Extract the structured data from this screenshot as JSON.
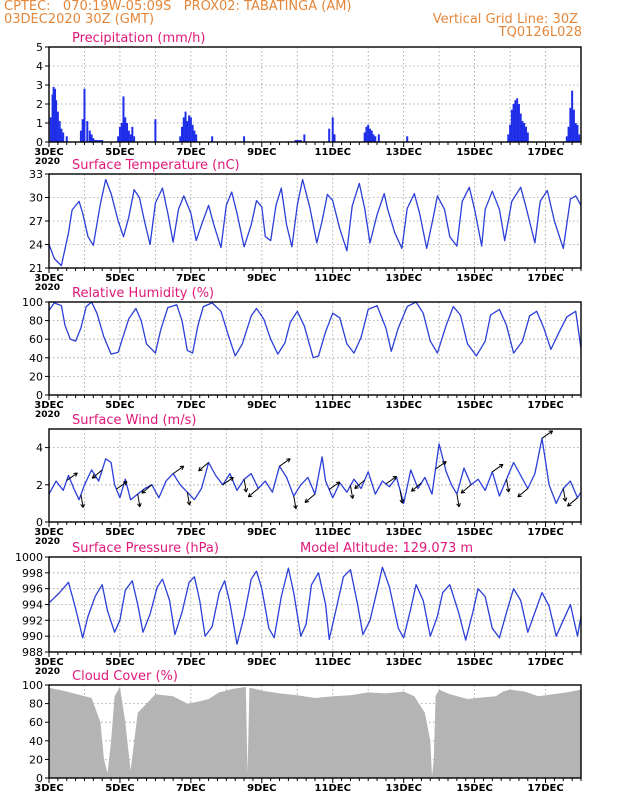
{
  "header": {
    "line1": "CPTEC:   070:19W-05:09S   PROX02: TABATINGA (AM)",
    "date": "03DEC2020 30Z (GMT)",
    "grid_line": "Vertical Grid Line: 30Z",
    "code": "TQ0126L028"
  },
  "colors": {
    "header": "#e5873a",
    "title": "#e0187a",
    "line": "#2b3fd9",
    "bar": "#1f2ee8",
    "cloud": "#b4b4b4",
    "axis": "#000000"
  },
  "x_axis": {
    "tick_labels": [
      "3DEC",
      "5DEC",
      "7DEC",
      "9DEC",
      "11DEC",
      "13DEC",
      "15DEC",
      "17DEC"
    ],
    "tick_days": [
      3,
      5,
      7,
      9,
      11,
      13,
      15,
      17
    ],
    "range_days": [
      3,
      18
    ],
    "year_label": "2020"
  },
  "chart_data": [
    {
      "type": "bar",
      "title": "Precipitation (mm/h)",
      "ylim": [
        0,
        5
      ],
      "yticks": [
        0,
        1,
        2,
        3,
        4,
        5
      ],
      "grid": true,
      "series": [
        {
          "x": [
            3.05,
            3.1,
            3.13,
            3.17,
            3.2,
            3.25,
            3.3,
            3.35,
            3.4,
            3.5,
            3.9,
            3.95,
            4.0,
            4.08,
            4.15,
            4.2,
            4.25,
            4.3,
            4.35,
            4.4,
            4.45,
            4.5,
            4.95,
            5.0,
            5.05,
            5.1,
            5.15,
            5.2,
            5.25,
            5.3,
            5.35,
            5.4,
            6.0,
            6.7,
            6.75,
            6.8,
            6.85,
            6.9,
            6.95,
            7.0,
            7.05,
            7.1,
            7.15,
            7.6,
            8.5,
            9.95,
            10.0,
            10.05,
            10.1,
            10.2,
            10.9,
            11.0,
            11.05,
            11.9,
            11.95,
            12.0,
            12.05,
            12.1,
            12.15,
            12.2,
            12.3,
            13.1,
            15.95,
            16.0,
            16.05,
            16.1,
            16.15,
            16.2,
            16.25,
            16.3,
            16.35,
            16.4,
            16.45,
            16.5,
            17.6,
            17.65,
            17.7,
            17.75,
            17.8,
            17.85,
            17.9,
            17.95
          ],
          "values": [
            1.3,
            2.5,
            2.9,
            2.8,
            2.2,
            1.6,
            1.1,
            0.7,
            0.5,
            0.3,
            0.6,
            1.2,
            2.8,
            1.1,
            0.6,
            0.4,
            0.2,
            0.1,
            0.1,
            0.1,
            0.1,
            0.1,
            0.3,
            0.8,
            1.0,
            2.4,
            1.3,
            1.0,
            0.6,
            0.4,
            0.8,
            0.3,
            1.2,
            0.3,
            0.8,
            1.3,
            1.6,
            1.1,
            1.4,
            1.3,
            0.9,
            0.6,
            0.4,
            0.3,
            0.3,
            0.1,
            0.1,
            0.1,
            0.1,
            0.4,
            0.7,
            1.3,
            0.4,
            0.5,
            0.8,
            0.9,
            0.7,
            0.6,
            0.4,
            0.3,
            0.4,
            0.3,
            0.4,
            0.9,
            1.7,
            2.0,
            2.2,
            2.3,
            2.0,
            1.5,
            1.1,
            1.0,
            0.8,
            0.5,
            0.3,
            0.8,
            1.8,
            2.7,
            1.7,
            1.0,
            0.9,
            0.4
          ]
        }
      ]
    },
    {
      "type": "line",
      "title": "Surface Temperature (nC)",
      "ylim": [
        21,
        33
      ],
      "yticks": [
        21,
        24,
        27,
        30,
        33
      ],
      "grid": true,
      "series": [
        {
          "x": [
            3.0,
            3.15,
            3.35,
            3.55,
            3.65,
            3.85,
            3.95,
            4.1,
            4.25,
            4.45,
            4.6,
            4.75,
            4.95,
            5.1,
            5.25,
            5.4,
            5.55,
            5.7,
            5.85,
            6.0,
            6.2,
            6.35,
            6.5,
            6.65,
            6.8,
            7.0,
            7.15,
            7.3,
            7.5,
            7.65,
            7.85,
            8.0,
            8.15,
            8.3,
            8.5,
            8.7,
            8.85,
            9.0,
            9.1,
            9.25,
            9.4,
            9.55,
            9.7,
            9.85,
            10.0,
            10.15,
            10.35,
            10.55,
            10.7,
            10.85,
            11.0,
            11.2,
            11.4,
            11.55,
            11.75,
            11.9,
            12.05,
            12.25,
            12.45,
            12.55,
            12.75,
            12.95,
            13.1,
            13.3,
            13.45,
            13.65,
            13.85,
            13.95,
            14.15,
            14.3,
            14.5,
            14.65,
            14.85,
            15.0,
            15.2,
            15.3,
            15.5,
            15.7,
            15.85,
            16.05,
            16.3,
            16.45,
            16.7,
            16.85,
            17.05,
            17.25,
            17.5,
            17.7,
            17.85,
            18.0
          ],
          "values": [
            24.0,
            22.2,
            21.3,
            25.5,
            28.4,
            29.5,
            28.0,
            25.0,
            23.9,
            29.2,
            32.3,
            30.5,
            27.0,
            25.0,
            27.5,
            31.0,
            30.0,
            26.8,
            24.0,
            29.3,
            31.2,
            28.0,
            24.3,
            28.5,
            30.2,
            28.0,
            24.5,
            26.5,
            29.0,
            26.5,
            23.6,
            29.0,
            30.7,
            28.0,
            23.7,
            26.5,
            29.6,
            28.8,
            25.0,
            24.5,
            29.0,
            31.2,
            26.5,
            23.7,
            29.0,
            32.3,
            28.8,
            24.2,
            27.0,
            30.4,
            29.6,
            26.0,
            23.2,
            28.9,
            31.8,
            28.6,
            24.2,
            27.8,
            30.5,
            28.5,
            25.5,
            23.5,
            28.6,
            30.5,
            28.0,
            23.5,
            27.8,
            30.2,
            28.5,
            25.0,
            23.8,
            29.5,
            31.3,
            28.5,
            23.8,
            28.5,
            30.8,
            28.5,
            24.5,
            29.5,
            31.3,
            28.8,
            24.2,
            29.5,
            30.9,
            27.0,
            23.5,
            29.8,
            30.2,
            29.0
          ]
        }
      ]
    },
    {
      "type": "line",
      "title": "Relative Humidity (%)",
      "ylim": [
        0,
        100
      ],
      "yticks": [
        0,
        20,
        40,
        60,
        80,
        100
      ],
      "grid": true,
      "series": [
        {
          "x": [
            3.0,
            3.15,
            3.35,
            3.45,
            3.6,
            3.75,
            3.9,
            4.05,
            4.2,
            4.35,
            4.55,
            4.75,
            4.95,
            5.05,
            5.25,
            5.45,
            5.6,
            5.75,
            6.0,
            6.15,
            6.35,
            6.6,
            6.75,
            6.9,
            7.05,
            7.2,
            7.35,
            7.6,
            7.85,
            8.05,
            8.25,
            8.45,
            8.7,
            8.85,
            9.05,
            9.25,
            9.45,
            9.65,
            9.8,
            10.0,
            10.2,
            10.45,
            10.6,
            10.8,
            11.0,
            11.2,
            11.4,
            11.6,
            11.8,
            12.0,
            12.25,
            12.5,
            12.65,
            12.85,
            13.1,
            13.35,
            13.55,
            13.75,
            13.95,
            14.2,
            14.4,
            14.6,
            14.8,
            15.05,
            15.3,
            15.45,
            15.7,
            15.9,
            16.1,
            16.35,
            16.55,
            16.75,
            16.95,
            17.15,
            17.35,
            17.6,
            17.85,
            18.0
          ],
          "values": [
            91.0,
            99.0,
            96.0,
            75.0,
            60.0,
            58.0,
            72.0,
            95.0,
            100.0,
            88.0,
            62.0,
            44.0,
            46.0,
            58.0,
            82.0,
            93.0,
            80.0,
            55.0,
            45.0,
            70.0,
            94.0,
            97.0,
            80.0,
            48.0,
            45.0,
            75.0,
            95.0,
            99.0,
            90.0,
            65.0,
            42.0,
            55.0,
            85.0,
            93.0,
            82.0,
            60.0,
            44.0,
            56.0,
            78.0,
            90.0,
            74.0,
            40.0,
            42.0,
            68.0,
            88.0,
            83.0,
            55.0,
            45.0,
            62.0,
            92.0,
            96.0,
            72.0,
            47.0,
            72.0,
            95.0,
            100.0,
            88.0,
            58.0,
            45.0,
            75.0,
            95.0,
            86.0,
            55.0,
            42.0,
            58.0,
            86.0,
            92.0,
            75.0,
            45.0,
            58.0,
            85.0,
            90.0,
            72.0,
            49.0,
            65.0,
            84.0,
            90.0,
            50.0
          ]
        }
      ]
    },
    {
      "type": "line",
      "title": "Surface Wind (m/s)",
      "ylim": [
        0,
        5
      ],
      "yticks": [
        0,
        2,
        4
      ],
      "grid": true,
      "series": [
        {
          "x": [
            3.0,
            3.2,
            3.4,
            3.55,
            3.7,
            3.85,
            4.0,
            4.2,
            4.4,
            4.6,
            4.75,
            4.85,
            5.0,
            5.15,
            5.3,
            5.5,
            5.7,
            5.9,
            6.1,
            6.3,
            6.5,
            6.7,
            6.9,
            7.1,
            7.3,
            7.5,
            7.7,
            7.9,
            8.1,
            8.3,
            8.5,
            8.7,
            8.9,
            9.1,
            9.3,
            9.5,
            9.7,
            9.9,
            10.1,
            10.3,
            10.5,
            10.7,
            10.8,
            11.0,
            11.2,
            11.4,
            11.6,
            11.8,
            12.0,
            12.2,
            12.4,
            12.6,
            12.8,
            13.0,
            13.2,
            13.4,
            13.6,
            13.8,
            14.0,
            14.2,
            14.35,
            14.5,
            14.7,
            14.9,
            15.1,
            15.3,
            15.5,
            15.7,
            15.9,
            16.1,
            16.3,
            16.5,
            16.7,
            16.9,
            17.1,
            17.3,
            17.5,
            17.7,
            17.9,
            18.0
          ],
          "values": [
            1.5,
            2.2,
            1.7,
            2.5,
            1.8,
            1.2,
            2.0,
            2.8,
            2.2,
            3.4,
            3.2,
            2.0,
            1.3,
            2.3,
            1.2,
            1.5,
            1.8,
            2.0,
            1.3,
            2.2,
            2.6,
            2.0,
            1.6,
            1.2,
            1.8,
            3.2,
            2.5,
            2.0,
            2.6,
            1.7,
            2.3,
            2.6,
            1.8,
            2.2,
            1.6,
            3.0,
            2.4,
            1.4,
            2.0,
            2.4,
            1.5,
            3.5,
            2.2,
            1.3,
            2.1,
            1.6,
            2.3,
            1.8,
            2.7,
            1.5,
            2.2,
            1.9,
            2.4,
            1.0,
            2.8,
            1.8,
            2.4,
            1.5,
            4.2,
            2.7,
            2.0,
            1.5,
            2.9,
            2.0,
            2.3,
            1.7,
            2.7,
            1.4,
            2.3,
            3.2,
            2.5,
            1.8,
            2.6,
            4.5,
            2.0,
            1.0,
            1.8,
            2.2,
            1.3,
            1.6
          ]
        }
      ],
      "wind_barbs_at_days": [
        3.5,
        3.9,
        4.5,
        4.9,
        5.5,
        5.9,
        6.5,
        6.9,
        7.5,
        7.9,
        8.5,
        8.9,
        9.5,
        9.9,
        10.5,
        10.9,
        11.5,
        11.9,
        12.5,
        12.9,
        13.5,
        13.9,
        14.5,
        14.9,
        15.5,
        15.9,
        16.5,
        16.9,
        17.5,
        17.9
      ]
    },
    {
      "type": "line",
      "title": "Surface Pressure (hPa)",
      "annotation": "Model Altitude: 129.073  m",
      "ylim": [
        988,
        1000
      ],
      "yticks": [
        988,
        990,
        992,
        994,
        996,
        998,
        1000
      ],
      "grid": true,
      "series": [
        {
          "x": [
            3.0,
            3.3,
            3.55,
            3.75,
            3.95,
            4.1,
            4.3,
            4.5,
            4.65,
            4.85,
            5.0,
            5.15,
            5.35,
            5.5,
            5.65,
            5.85,
            6.05,
            6.2,
            6.4,
            6.55,
            6.75,
            6.95,
            7.1,
            7.25,
            7.4,
            7.6,
            7.8,
            7.95,
            8.1,
            8.3,
            8.5,
            8.7,
            8.85,
            9.0,
            9.2,
            9.35,
            9.55,
            9.75,
            9.9,
            10.1,
            10.25,
            10.4,
            10.6,
            10.8,
            10.9,
            11.1,
            11.3,
            11.5,
            11.7,
            11.85,
            12.05,
            12.25,
            12.4,
            12.6,
            12.85,
            13.0,
            13.2,
            13.35,
            13.55,
            13.75,
            13.95,
            14.1,
            14.3,
            14.55,
            14.75,
            14.95,
            15.1,
            15.3,
            15.5,
            15.7,
            15.9,
            16.1,
            16.3,
            16.5,
            16.7,
            16.9,
            17.1,
            17.3,
            17.5,
            17.7,
            17.9,
            18.0
          ],
          "values": [
            994.2,
            995.5,
            996.8,
            993.5,
            989.8,
            992.5,
            995.0,
            996.5,
            993.2,
            990.5,
            992.0,
            995.8,
            997.0,
            994.0,
            990.5,
            992.8,
            996.2,
            997.2,
            994.5,
            990.2,
            993.0,
            996.8,
            997.5,
            994.5,
            990.0,
            991.2,
            995.5,
            997.0,
            994.2,
            989.0,
            992.5,
            997.2,
            998.2,
            996.0,
            991.0,
            989.8,
            995.0,
            998.6,
            995.5,
            990.0,
            991.5,
            996.5,
            998.0,
            994.0,
            989.6,
            993.5,
            997.5,
            998.4,
            994.0,
            990.2,
            992.0,
            995.8,
            998.7,
            996.2,
            991.0,
            989.8,
            993.5,
            996.5,
            994.5,
            990.0,
            992.5,
            995.5,
            996.5,
            993.0,
            989.5,
            993.0,
            996.0,
            995.0,
            991.0,
            989.8,
            993.0,
            996.0,
            994.5,
            990.5,
            993.0,
            995.5,
            993.8,
            990.0,
            992.0,
            994.0,
            990.0,
            992.5
          ]
        }
      ]
    },
    {
      "type": "area",
      "title": "Cloud Cover (%)",
      "ylim": [
        0,
        100
      ],
      "yticks": [
        0,
        20,
        40,
        60,
        80,
        100
      ],
      "grid": true,
      "series": [
        {
          "x": [
            3.0,
            3.5,
            3.9,
            4.2,
            4.45,
            4.55,
            4.65,
            4.75,
            4.85,
            5.0,
            5.15,
            5.3,
            5.5,
            6.0,
            6.5,
            6.9,
            7.2,
            7.5,
            7.8,
            8.0,
            8.2,
            8.4,
            8.55,
            8.6,
            8.65,
            8.8,
            9.0,
            9.5,
            10.0,
            10.5,
            11.0,
            11.5,
            12.0,
            12.5,
            13.0,
            13.3,
            13.6,
            13.75,
            13.8,
            13.85,
            13.9,
            14.0,
            14.3,
            14.8,
            15.3,
            15.6,
            15.8,
            16.0,
            16.4,
            16.8,
            17.2,
            17.6,
            18.0
          ],
          "values": [
            97,
            93,
            89,
            86,
            60,
            20,
            5,
            40,
            88,
            98,
            60,
            8,
            70,
            90,
            88,
            80,
            82,
            85,
            92,
            94,
            96,
            97,
            98,
            5,
            97,
            96,
            94,
            91,
            89,
            86,
            88,
            89,
            92,
            91,
            93,
            88,
            70,
            40,
            2,
            20,
            88,
            95,
            90,
            85,
            87,
            88,
            93,
            95,
            93,
            88,
            90,
            92,
            95
          ]
        }
      ]
    }
  ]
}
